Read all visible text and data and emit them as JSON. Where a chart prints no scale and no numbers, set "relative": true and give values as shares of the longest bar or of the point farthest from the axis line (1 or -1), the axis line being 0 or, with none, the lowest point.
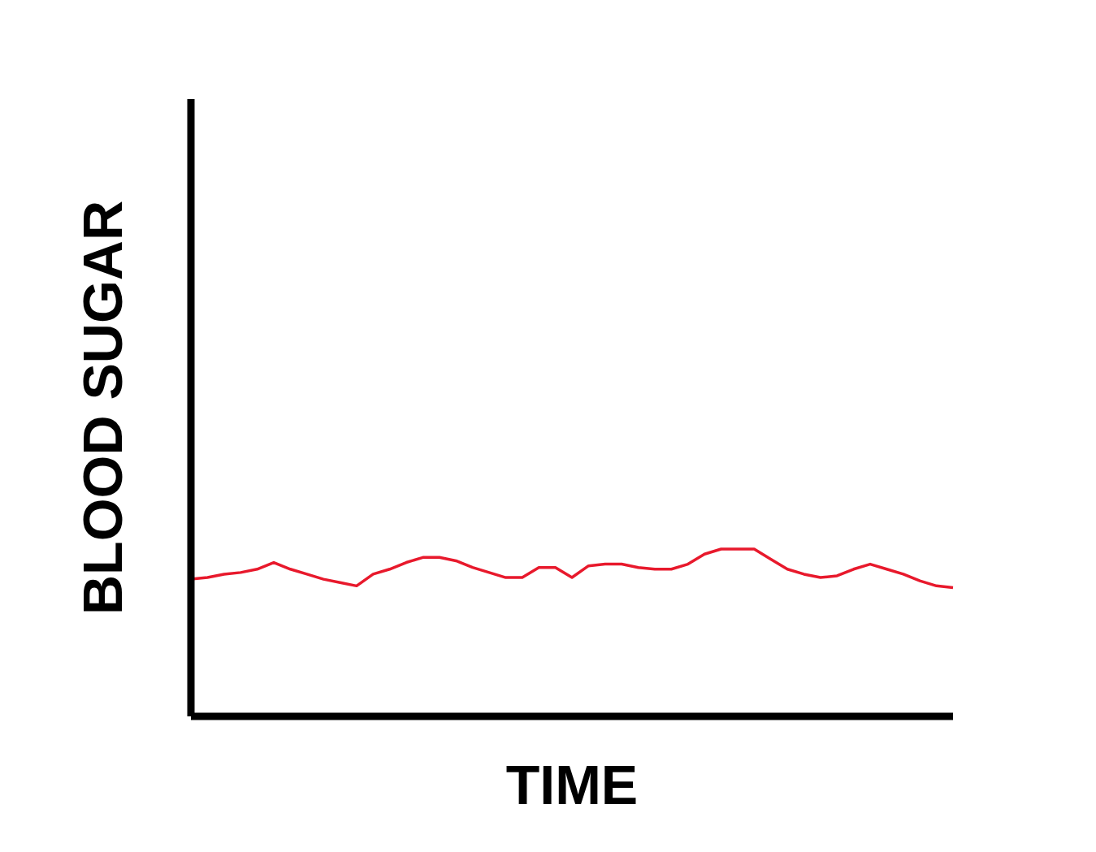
{
  "chart_data": {
    "type": "line",
    "xlabel": "TIME",
    "ylabel": "BLOOD SUGAR",
    "relative": true,
    "marker": "none",
    "categories": [
      null,
      null,
      null,
      null,
      null,
      null,
      null,
      null,
      null,
      null,
      null,
      null,
      null,
      null,
      null,
      null,
      null,
      null,
      null,
      null,
      null,
      null,
      null,
      null,
      null,
      null,
      null,
      null,
      null,
      null,
      null,
      null,
      null,
      null,
      null,
      null,
      null,
      null,
      null,
      null,
      null,
      null,
      null,
      null,
      null,
      null,
      null
    ],
    "series": [
      {
        "color": "#e8192c",
        "values": [
          0.82,
          0.83,
          0.85,
          0.86,
          0.88,
          0.92,
          0.88,
          0.85,
          0.82,
          0.8,
          0.78,
          0.85,
          0.88,
          0.92,
          0.95,
          0.95,
          0.93,
          0.89,
          0.86,
          0.83,
          0.83,
          0.89,
          0.89,
          0.83,
          0.9,
          0.91,
          0.91,
          0.89,
          0.88,
          0.88,
          0.91,
          0.97,
          1.0,
          1.0,
          1.0,
          0.94,
          0.88,
          0.85,
          0.83,
          0.84,
          0.88,
          0.91,
          0.88,
          0.85,
          0.81,
          0.78,
          0.77
        ]
      }
    ]
  }
}
